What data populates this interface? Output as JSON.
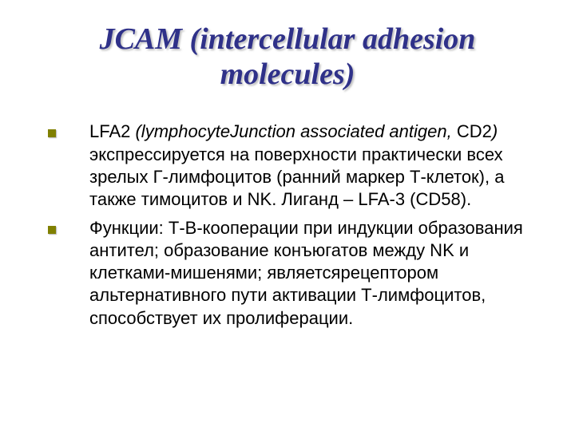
{
  "slide": {
    "title": "JCAM (intercellular adhesion molecules)",
    "title_color": "#2f3189",
    "title_fontsize": 38,
    "title_fontfamily": "Times New Roman, serif",
    "title_fontstyle": "italic",
    "title_fontweight": "bold",
    "bullet_color": "#808000",
    "bullet_size": 10,
    "body_color": "#000000",
    "body_fontsize": 22,
    "body_fontfamily": "Verdana, Arial, sans-serif",
    "background_color": "#ffffff",
    "items": [
      {
        "prefix": "LFA2 ",
        "italic": "(lymphocyteJunction associated antigen, ",
        "after_italic_nonitalic": "CD2",
        "italic_close": ")",
        "rest": " экспрессируется на поверхности практически всех зрелых Г-лимфоцитов (ранний маркер Т-клеток), а также тимоцитов и NK. Лиганд – LFA-3 (CD58)."
      },
      {
        "text": "Функции: Т-В-кооперации при индукции образования антител; образование конъюгатов между NK и клетками-мишенями; являетсярецептором альтернативного пути активации Т-лимфоцитов, способствует их пролиферации."
      }
    ]
  }
}
